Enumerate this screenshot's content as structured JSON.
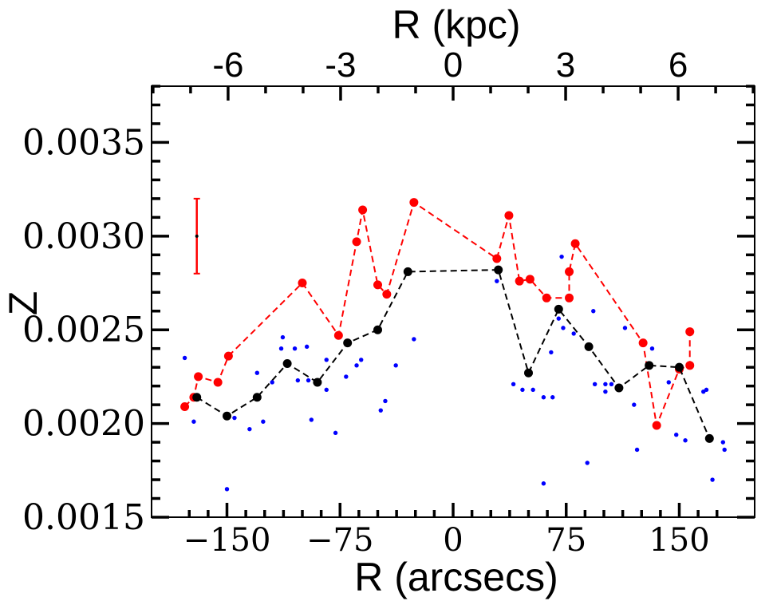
{
  "chart_data": {
    "type": "scatter",
    "ylabel": "Z",
    "xlabel": "R (arcsecs)",
    "top_xlabel": "R (kpc)",
    "xlim": [
      -200,
      200
    ],
    "ylim": [
      0.0015,
      0.0038
    ],
    "x_ticks": [
      -150,
      -75,
      0,
      75,
      150
    ],
    "x_tick_labels": [
      "−150",
      "−75",
      "0",
      "75",
      "150"
    ],
    "y_ticks": [
      0.0015,
      0.002,
      0.0025,
      0.003,
      0.0035
    ],
    "y_tick_labels": [
      "0.0015",
      "0.0020",
      "0.0025",
      "0.0030",
      "0.0035"
    ],
    "top_ticks_kpc": [
      -6,
      -3,
      0,
      3,
      6
    ],
    "top_tick_labels": [
      "-6",
      "-3",
      "0",
      "3",
      "6"
    ],
    "kpc_per_arcsec": 0.0402,
    "colors": {
      "red": "#ff0000",
      "black": "#000000",
      "blue": "#0000ff"
    },
    "series": [
      {
        "name": "red",
        "style": "dashed-line-markers",
        "x": [
          -178,
          -172,
          -169,
          -156,
          -149,
          -100,
          -76,
          -64,
          -60,
          -50,
          -44,
          -26,
          29,
          37,
          44,
          51,
          62,
          77,
          77,
          81,
          126,
          135,
          150,
          157,
          157
        ],
        "y": [
          0.00209,
          0.00214,
          0.00225,
          0.00222,
          0.00236,
          0.00275,
          0.00247,
          0.00297,
          0.00314,
          0.00274,
          0.00269,
          0.00318,
          0.00288,
          0.00311,
          0.00276,
          0.00277,
          0.00267,
          0.00267,
          0.00281,
          0.00296,
          0.00243,
          0.00199,
          0.00229,
          0.00231,
          0.00249
        ]
      },
      {
        "name": "black",
        "style": "dashed-line-markers",
        "x": [
          -170,
          -150,
          -130,
          -110,
          -90,
          -70,
          -50,
          -30,
          30,
          50,
          70,
          90,
          110,
          130,
          150,
          170
        ],
        "y": [
          0.00214,
          0.00204,
          0.00214,
          0.00232,
          0.00222,
          0.00243,
          0.0025,
          0.00281,
          0.00282,
          0.00227,
          0.00261,
          0.00241,
          0.00219,
          0.00231,
          0.0023,
          0.00192
        ]
      },
      {
        "name": "blue",
        "style": "points",
        "x": [
          -178,
          -172,
          -150,
          -145,
          -135,
          -130,
          -126,
          -120,
          -113,
          -114,
          -105,
          -103,
          -97,
          -96,
          -94,
          -84,
          -84,
          -78,
          -71,
          -64,
          -61,
          -48,
          -45,
          -38,
          -26,
          29,
          40,
          46,
          53,
          60,
          60,
          66,
          65,
          70,
          72,
          73,
          80,
          89,
          93,
          94,
          101,
          101,
          105,
          114,
          120,
          122,
          132,
          143,
          148,
          154,
          166,
          168,
          172,
          179,
          180
        ],
        "y": [
          0.00235,
          0.00201,
          0.00165,
          0.00203,
          0.00197,
          0.00227,
          0.00201,
          0.00222,
          0.00246,
          0.0024,
          0.0024,
          0.00223,
          0.00241,
          0.00223,
          0.00202,
          0.00234,
          0.00218,
          0.00195,
          0.00225,
          0.00231,
          0.00234,
          0.00207,
          0.00212,
          0.00231,
          0.00245,
          0.00276,
          0.00221,
          0.00218,
          0.00218,
          0.00168,
          0.00214,
          0.00214,
          0.00238,
          0.00256,
          0.00289,
          0.00251,
          0.00248,
          0.00179,
          0.0026,
          0.00221,
          0.00221,
          0.00217,
          0.00221,
          0.00251,
          0.0021,
          0.00186,
          0.0024,
          0.00222,
          0.00194,
          0.00191,
          0.00217,
          0.00218,
          0.0017,
          0.0019,
          0.00186
        ]
      }
    ],
    "error_bar": {
      "x": -170,
      "y": 0.003,
      "yerr": 0.0002,
      "color": "red"
    }
  }
}
